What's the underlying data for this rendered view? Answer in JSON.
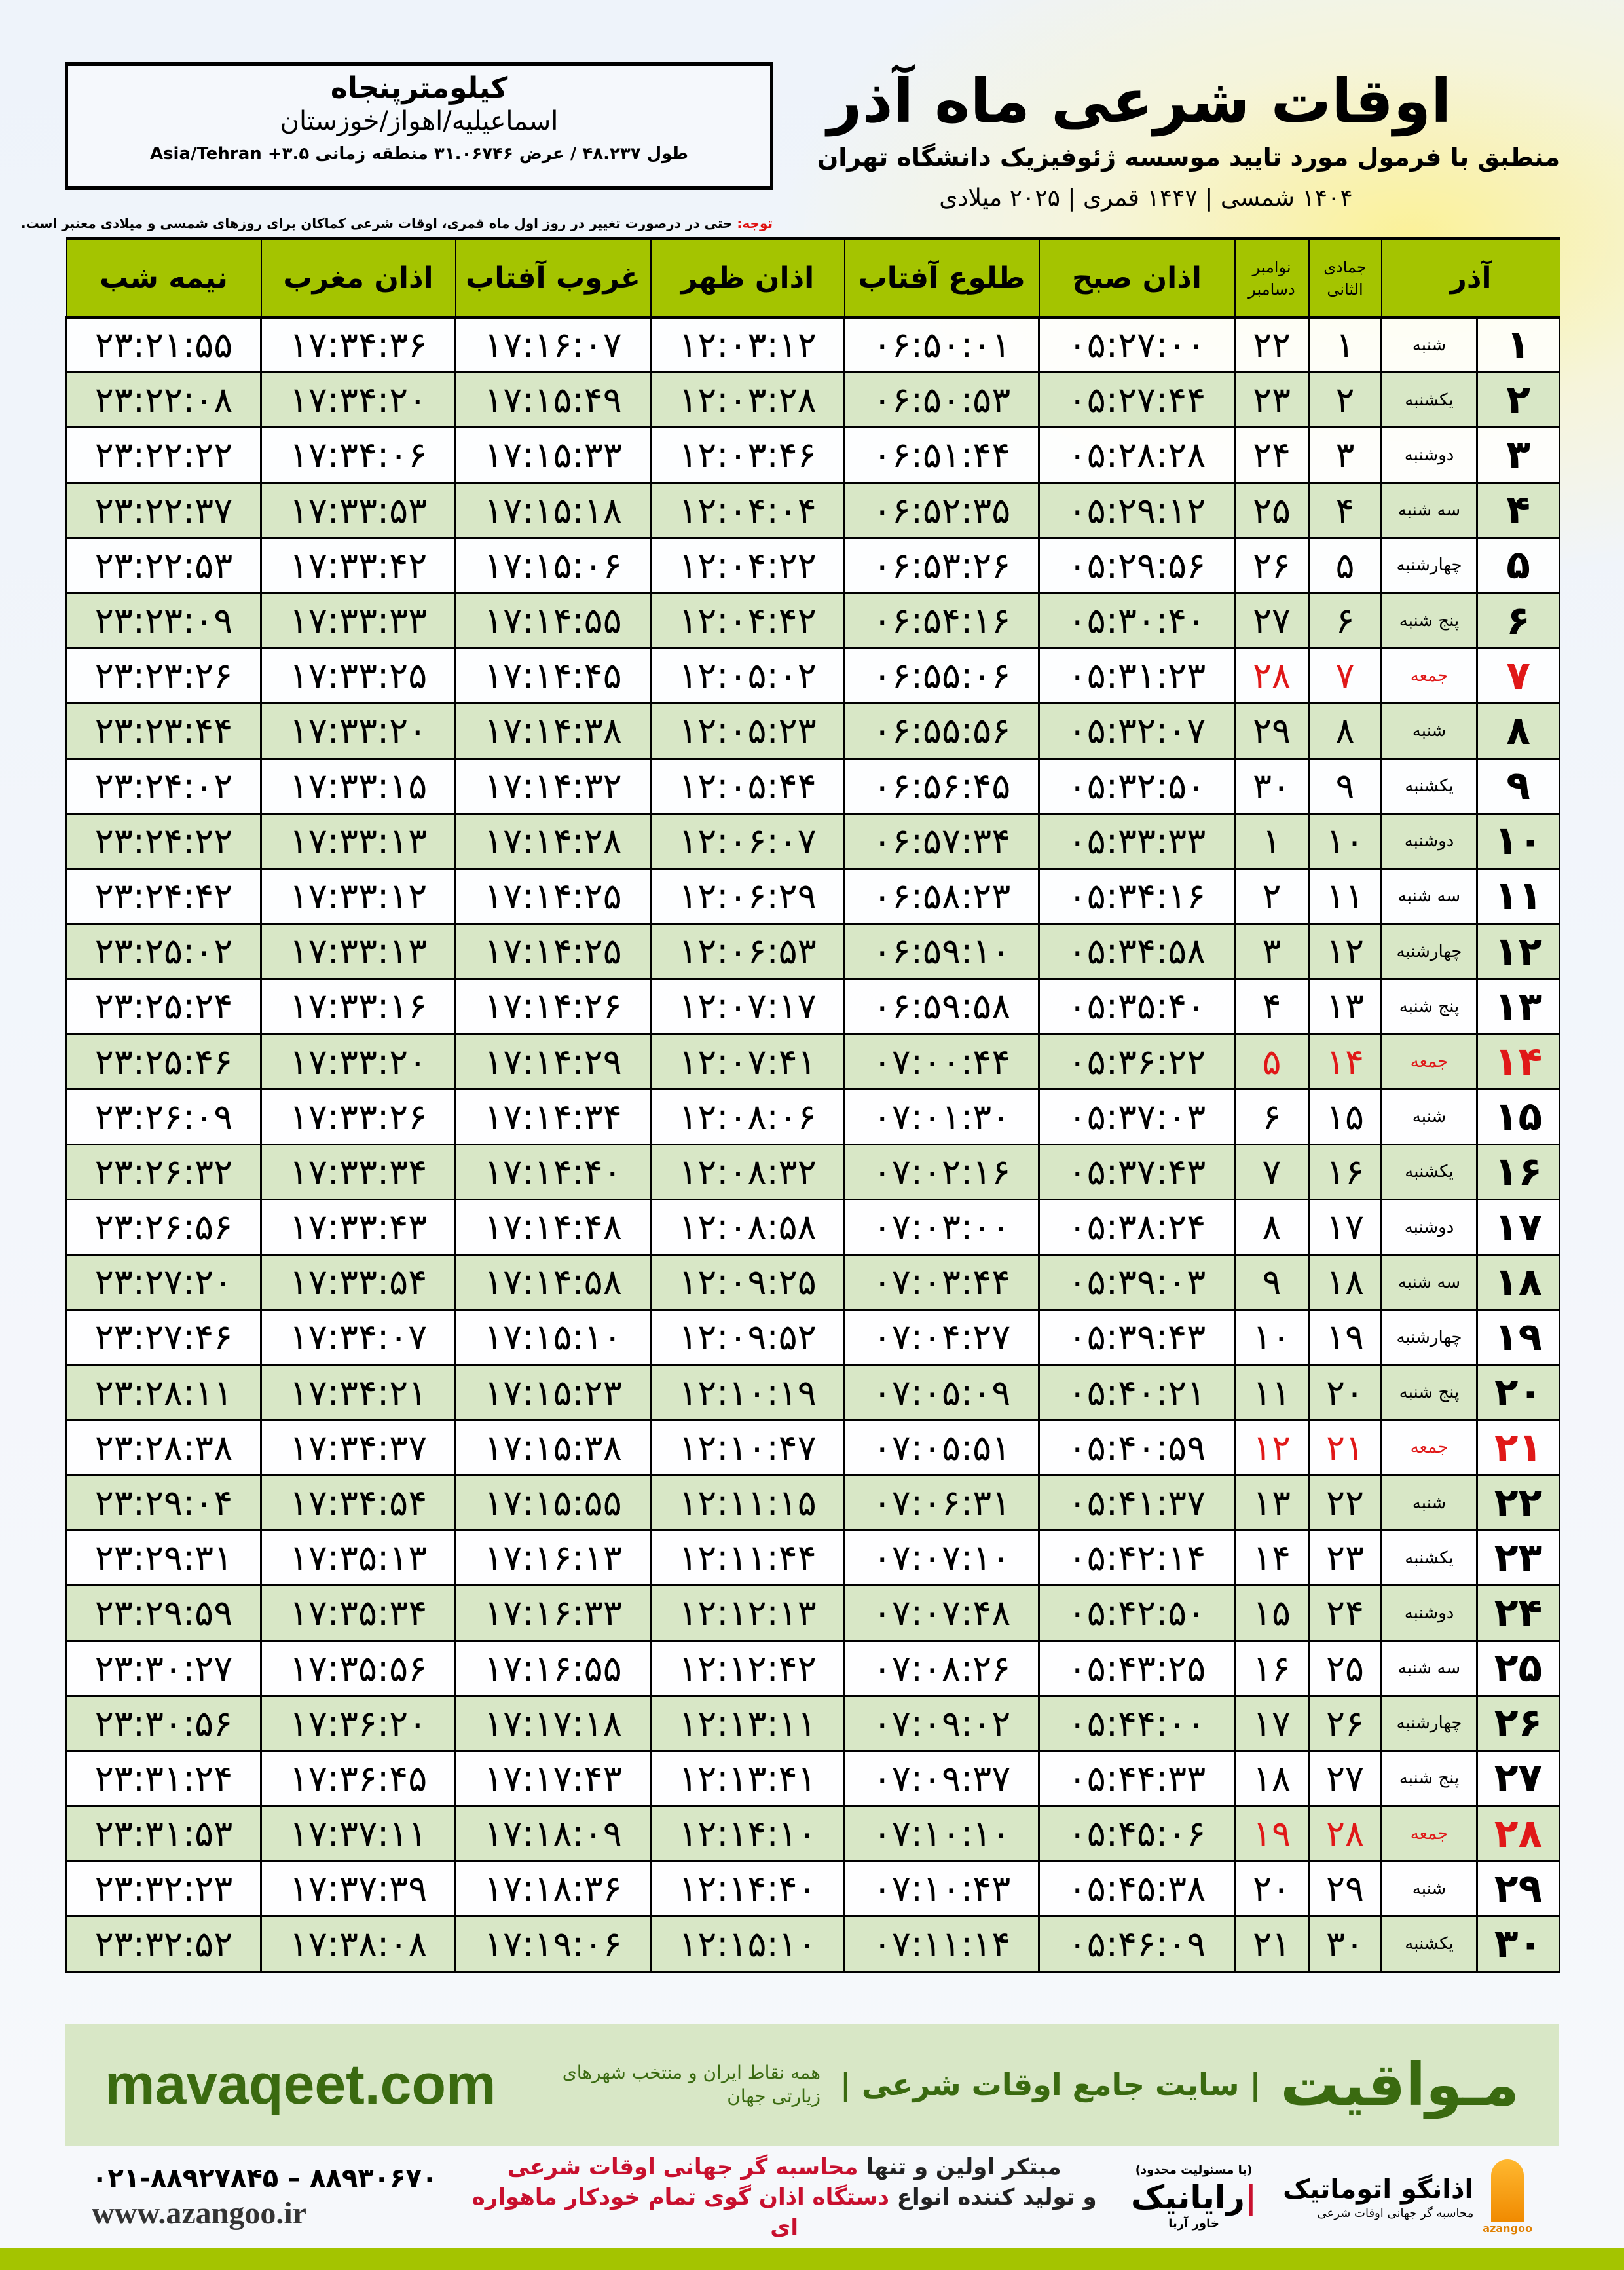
{
  "info": {
    "city": "کیلومترپنجاه",
    "province": "اسماعیلیه/اهواز/خوزستان",
    "coords": "طول ۴۸.۲۳۷ / عرض ۳۱.۰۶۷۴۶ منطقه زمانی ۳.۵+ Asia/Tehran"
  },
  "header": {
    "title": "اوقات شرعی ماه آذر",
    "subtitle": "منطبق با فرمول مورد تایید موسسه ژئوفیزیک دانشگاه تهران",
    "years": "۱۴۰۴ شمسی | ۱۴۴۷ قمری | ۲۰۲۵ میلادی"
  },
  "note": {
    "label": "توجه:",
    "text": " حتی در درصورت تغییر در روز اول ماه قمری، اوقات شرعی کماکان برای روزهای شمسی و میلادی معتبر است."
  },
  "columns": {
    "month": "آذر",
    "hijri": "جمادی الثانی",
    "miladi_top": "نوامبر",
    "miladi_bottom": "دسامبر",
    "sobh": "اذان صبح",
    "tolu": "طلوع آفتاب",
    "zohr": "اذان ظهر",
    "ghorub": "غروب آفتاب",
    "maghrib": "اذان مغرب",
    "nimeh": "نیمه شب"
  },
  "colors": {
    "header_green": "#a4c400",
    "row_green": "#d8e7c6",
    "friday_red": "#e01818",
    "brand_green": "#3a6a10"
  },
  "rows": [
    [
      "۱",
      "شنبه",
      "۱",
      "۲۲",
      "۰۵:۲۷:۰۰",
      "۰۶:۵۰:۰۱",
      "۱۲:۰۳:۱۲",
      "۱۷:۱۶:۰۷",
      "۱۷:۳۴:۳۶",
      "۲۳:۲۱:۵۵"
    ],
    [
      "۲",
      "یکشنبه",
      "۲",
      "۲۳",
      "۰۵:۲۷:۴۴",
      "۰۶:۵۰:۵۳",
      "۱۲:۰۳:۲۸",
      "۱۷:۱۵:۴۹",
      "۱۷:۳۴:۲۰",
      "۲۳:۲۲:۰۸"
    ],
    [
      "۳",
      "دوشنبه",
      "۳",
      "۲۴",
      "۰۵:۲۸:۲۸",
      "۰۶:۵۱:۴۴",
      "۱۲:۰۳:۴۶",
      "۱۷:۱۵:۳۳",
      "۱۷:۳۴:۰۶",
      "۲۳:۲۲:۲۲"
    ],
    [
      "۴",
      "سه شنبه",
      "۴",
      "۲۵",
      "۰۵:۲۹:۱۲",
      "۰۶:۵۲:۳۵",
      "۱۲:۰۴:۰۴",
      "۱۷:۱۵:۱۸",
      "۱۷:۳۳:۵۳",
      "۲۳:۲۲:۳۷"
    ],
    [
      "۵",
      "چهارشنبه",
      "۵",
      "۲۶",
      "۰۵:۲۹:۵۶",
      "۰۶:۵۳:۲۶",
      "۱۲:۰۴:۲۲",
      "۱۷:۱۵:۰۶",
      "۱۷:۳۳:۴۲",
      "۲۳:۲۲:۵۳"
    ],
    [
      "۶",
      "پنج شنبه",
      "۶",
      "۲۷",
      "۰۵:۳۰:۴۰",
      "۰۶:۵۴:۱۶",
      "۱۲:۰۴:۴۲",
      "۱۷:۱۴:۵۵",
      "۱۷:۳۳:۳۳",
      "۲۳:۲۳:۰۹"
    ],
    [
      "۷",
      "جمعه",
      "۷",
      "۲۸",
      "۰۵:۳۱:۲۳",
      "۰۶:۵۵:۰۶",
      "۱۲:۰۵:۰۲",
      "۱۷:۱۴:۴۵",
      "۱۷:۳۳:۲۵",
      "۲۳:۲۳:۲۶"
    ],
    [
      "۸",
      "شنبه",
      "۸",
      "۲۹",
      "۰۵:۳۲:۰۷",
      "۰۶:۵۵:۵۶",
      "۱۲:۰۵:۲۳",
      "۱۷:۱۴:۳۸",
      "۱۷:۳۳:۲۰",
      "۲۳:۲۳:۴۴"
    ],
    [
      "۹",
      "یکشنبه",
      "۹",
      "۳۰",
      "۰۵:۳۲:۵۰",
      "۰۶:۵۶:۴۵",
      "۱۲:۰۵:۴۴",
      "۱۷:۱۴:۳۲",
      "۱۷:۳۳:۱۵",
      "۲۳:۲۴:۰۲"
    ],
    [
      "۱۰",
      "دوشنبه",
      "۱۰",
      "۱",
      "۰۵:۳۳:۳۳",
      "۰۶:۵۷:۳۴",
      "۱۲:۰۶:۰۷",
      "۱۷:۱۴:۲۸",
      "۱۷:۳۳:۱۳",
      "۲۳:۲۴:۲۲"
    ],
    [
      "۱۱",
      "سه شنبه",
      "۱۱",
      "۲",
      "۰۵:۳۴:۱۶",
      "۰۶:۵۸:۲۳",
      "۱۲:۰۶:۲۹",
      "۱۷:۱۴:۲۵",
      "۱۷:۳۳:۱۲",
      "۲۳:۲۴:۴۲"
    ],
    [
      "۱۲",
      "چهارشنبه",
      "۱۲",
      "۳",
      "۰۵:۳۴:۵۸",
      "۰۶:۵۹:۱۰",
      "۱۲:۰۶:۵۳",
      "۱۷:۱۴:۲۵",
      "۱۷:۳۳:۱۳",
      "۲۳:۲۵:۰۲"
    ],
    [
      "۱۳",
      "پنج شنبه",
      "۱۳",
      "۴",
      "۰۵:۳۵:۴۰",
      "۰۶:۵۹:۵۸",
      "۱۲:۰۷:۱۷",
      "۱۷:۱۴:۲۶",
      "۱۷:۳۳:۱۶",
      "۲۳:۲۵:۲۴"
    ],
    [
      "۱۴",
      "جمعه",
      "۱۴",
      "۵",
      "۰۵:۳۶:۲۲",
      "۰۷:۰۰:۴۴",
      "۱۲:۰۷:۴۱",
      "۱۷:۱۴:۲۹",
      "۱۷:۳۳:۲۰",
      "۲۳:۲۵:۴۶"
    ],
    [
      "۱۵",
      "شنبه",
      "۱۵",
      "۶",
      "۰۵:۳۷:۰۳",
      "۰۷:۰۱:۳۰",
      "۱۲:۰۸:۰۶",
      "۱۷:۱۴:۳۴",
      "۱۷:۳۳:۲۶",
      "۲۳:۲۶:۰۹"
    ],
    [
      "۱۶",
      "یکشنبه",
      "۱۶",
      "۷",
      "۰۵:۳۷:۴۳",
      "۰۷:۰۲:۱۶",
      "۱۲:۰۸:۳۲",
      "۱۷:۱۴:۴۰",
      "۱۷:۳۳:۳۴",
      "۲۳:۲۶:۳۲"
    ],
    [
      "۱۷",
      "دوشنبه",
      "۱۷",
      "۸",
      "۰۵:۳۸:۲۴",
      "۰۷:۰۳:۰۰",
      "۱۲:۰۸:۵۸",
      "۱۷:۱۴:۴۸",
      "۱۷:۳۳:۴۳",
      "۲۳:۲۶:۵۶"
    ],
    [
      "۱۸",
      "سه شنبه",
      "۱۸",
      "۹",
      "۰۵:۳۹:۰۳",
      "۰۷:۰۳:۴۴",
      "۱۲:۰۹:۲۵",
      "۱۷:۱۴:۵۸",
      "۱۷:۳۳:۵۴",
      "۲۳:۲۷:۲۰"
    ],
    [
      "۱۹",
      "چهارشنبه",
      "۱۹",
      "۱۰",
      "۰۵:۳۹:۴۳",
      "۰۷:۰۴:۲۷",
      "۱۲:۰۹:۵۲",
      "۱۷:۱۵:۱۰",
      "۱۷:۳۴:۰۷",
      "۲۳:۲۷:۴۶"
    ],
    [
      "۲۰",
      "پنج شنبه",
      "۲۰",
      "۱۱",
      "۰۵:۴۰:۲۱",
      "۰۷:۰۵:۰۹",
      "۱۲:۱۰:۱۹",
      "۱۷:۱۵:۲۳",
      "۱۷:۳۴:۲۱",
      "۲۳:۲۸:۱۱"
    ],
    [
      "۲۱",
      "جمعه",
      "۲۱",
      "۱۲",
      "۰۵:۴۰:۵۹",
      "۰۷:۰۵:۵۱",
      "۱۲:۱۰:۴۷",
      "۱۷:۱۵:۳۸",
      "۱۷:۳۴:۳۷",
      "۲۳:۲۸:۳۸"
    ],
    [
      "۲۲",
      "شنبه",
      "۲۲",
      "۱۳",
      "۰۵:۴۱:۳۷",
      "۰۷:۰۶:۳۱",
      "۱۲:۱۱:۱۵",
      "۱۷:۱۵:۵۵",
      "۱۷:۳۴:۵۴",
      "۲۳:۲۹:۰۴"
    ],
    [
      "۲۳",
      "یکشنبه",
      "۲۳",
      "۱۴",
      "۰۵:۴۲:۱۴",
      "۰۷:۰۷:۱۰",
      "۱۲:۱۱:۴۴",
      "۱۷:۱۶:۱۳",
      "۱۷:۳۵:۱۳",
      "۲۳:۲۹:۳۱"
    ],
    [
      "۲۴",
      "دوشنبه",
      "۲۴",
      "۱۵",
      "۰۵:۴۲:۵۰",
      "۰۷:۰۷:۴۸",
      "۱۲:۱۲:۱۳",
      "۱۷:۱۶:۳۳",
      "۱۷:۳۵:۳۴",
      "۲۳:۲۹:۵۹"
    ],
    [
      "۲۵",
      "سه شنبه",
      "۲۵",
      "۱۶",
      "۰۵:۴۳:۲۵",
      "۰۷:۰۸:۲۶",
      "۱۲:۱۲:۴۲",
      "۱۷:۱۶:۵۵",
      "۱۷:۳۵:۵۶",
      "۲۳:۳۰:۲۷"
    ],
    [
      "۲۶",
      "چهارشنبه",
      "۲۶",
      "۱۷",
      "۰۵:۴۴:۰۰",
      "۰۷:۰۹:۰۲",
      "۱۲:۱۳:۱۱",
      "۱۷:۱۷:۱۸",
      "۱۷:۳۶:۲۰",
      "۲۳:۳۰:۵۶"
    ],
    [
      "۲۷",
      "پنج شنبه",
      "۲۷",
      "۱۸",
      "۰۵:۴۴:۳۳",
      "۰۷:۰۹:۳۷",
      "۱۲:۱۳:۴۱",
      "۱۷:۱۷:۴۳",
      "۱۷:۳۶:۴۵",
      "۲۳:۳۱:۲۴"
    ],
    [
      "۲۸",
      "جمعه",
      "۲۸",
      "۱۹",
      "۰۵:۴۵:۰۶",
      "۰۷:۱۰:۱۰",
      "۱۲:۱۴:۱۰",
      "۱۷:۱۸:۰۹",
      "۱۷:۳۷:۱۱",
      "۲۳:۳۱:۵۳"
    ],
    [
      "۲۹",
      "شنبه",
      "۲۹",
      "۲۰",
      "۰۵:۴۵:۳۸",
      "۰۷:۱۰:۴۳",
      "۱۲:۱۴:۴۰",
      "۱۷:۱۸:۳۶",
      "۱۷:۳۷:۳۹",
      "۲۳:۳۲:۲۳"
    ],
    [
      "۳۰",
      "یکشنبه",
      "۳۰",
      "۲۱",
      "۰۵:۴۶:۰۹",
      "۰۷:۱۱:۱۴",
      "۱۲:۱۵:۱۰",
      "۱۷:۱۹:۰۶",
      "۱۷:۳۸:۰۸",
      "۲۳:۳۲:۵۲"
    ]
  ],
  "banner": {
    "brand": "مـواقیت",
    "slogan": "| سایت جامع اوقات شرعی |",
    "slogan2": "همه نقاط ایران و منتخب شهرهای زیارتی جهان",
    "site": "mavaqeet.com"
  },
  "footer": {
    "phone": "۰۲۱-۸۸۹۲۷۸۴۵ – ۸۸۹۳۰۶۷۰",
    "web": "www.azangoo.ir",
    "promo1a": "مبتکر اولین و تنها ",
    "promo1b": "محاسبه گر جهانی اوقات شرعی",
    "promo2a": "و تولید کننده انواع ",
    "promo2b": "دستگاه اذان گوی تمام خودکار ماهواره ای",
    "logo1_small": "(با مسئولیت محدود)",
    "logo1_sub": "خاور آریا",
    "logo1_name": "رایانیک",
    "logo2_name": "اذانگو اتوماتیک",
    "logo2_sub": "محاسبه گر جهانی اوقات شرعی",
    "logo2_latin": "azangoo"
  }
}
